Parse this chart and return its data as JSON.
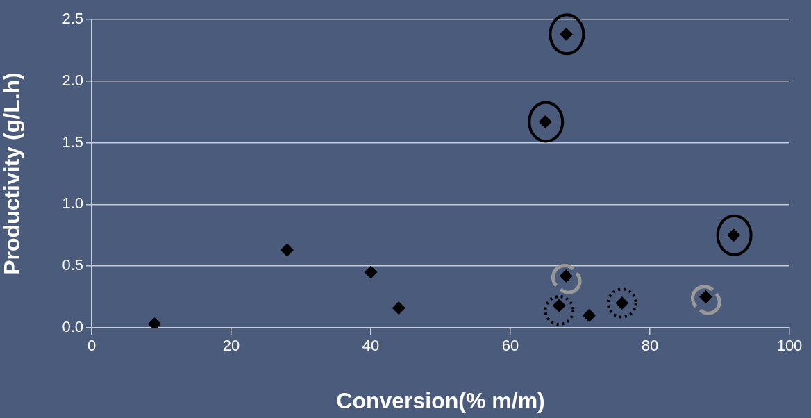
{
  "chart_data": {
    "type": "scatter",
    "xlabel": "Conversion(% m/m)",
    "ylabel": "Productivity (g/L.h)",
    "x": [
      9,
      28,
      40,
      44,
      68,
      67,
      71.3,
      76,
      88,
      92,
      68,
      65
    ],
    "values": [
      0.03,
      0.63,
      0.45,
      0.16,
      0.42,
      0.18,
      0.1,
      0.2,
      0.25,
      0.75,
      2.38,
      1.67
    ],
    "color": "#000000",
    "marker": "diamond",
    "xlim": [
      0,
      100
    ],
    "xticks": [
      0,
      20,
      40,
      60,
      80,
      100
    ],
    "ylim": [
      0,
      2.5
    ],
    "yticks": [
      {
        "value": 0,
        "label": "0.0"
      },
      {
        "value": 0.5,
        "label": "0.5"
      },
      {
        "value": 1,
        "label": "1.0"
      },
      {
        "value": 1.5,
        "label": "1.5"
      },
      {
        "value": 2,
        "label": "2.0"
      },
      {
        "value": 2.5,
        "label": "2.5"
      }
    ],
    "grid": "y",
    "legend": false
  }
}
